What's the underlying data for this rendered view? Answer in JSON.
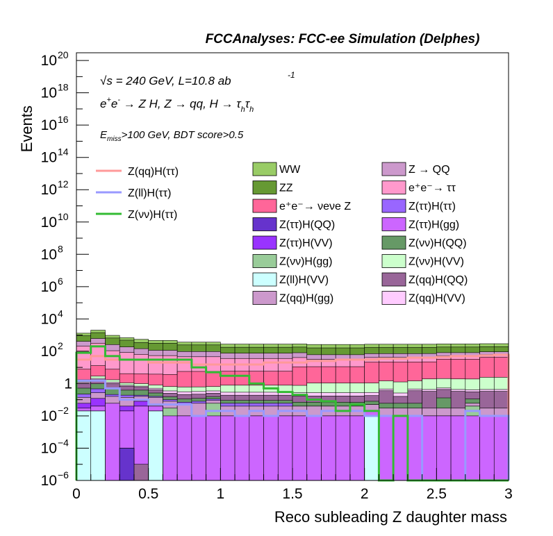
{
  "header": {
    "title": "FCCAnalyses: FCC-ee Simulation (Delphes)"
  },
  "annotations": {
    "energy_line": {
      "sqrt": "√s",
      "text": " = 240 GeV, L=10.8 ab",
      "sup": "-1"
    },
    "process_line": "e⁺e⁻ → Z H, Z → qq, H → τ_h τ_h",
    "process_parts": {
      "ee": "e",
      "plus": "+",
      "minus": "-",
      "arrow1": "→ Z H, Z ",
      "arrow2": "→ qq, H ",
      "arrow3": "→ τ",
      "h1": "h",
      "tau2": "τ",
      "h2": "h"
    },
    "cut_line": {
      "E": "E",
      "sub": "miss",
      "rest": ">100 GeV, BDT score>0.5"
    }
  },
  "chart_data": {
    "type": "bar",
    "stacked": true,
    "log_y": true,
    "xlabel": "Reco subleading Z daughter mass",
    "ylabel": "Events",
    "xlim": [
      0,
      3
    ],
    "ylim": [
      1e-06,
      3e+20
    ],
    "x_ticks": [
      {
        "v": 0,
        "label": "0"
      },
      {
        "v": 0.5,
        "label": "0.5"
      },
      {
        "v": 1,
        "label": "1"
      },
      {
        "v": 1.5,
        "label": "1.5"
      },
      {
        "v": 2,
        "label": "2"
      },
      {
        "v": 2.5,
        "label": "2.5"
      },
      {
        "v": 3,
        "label": "3"
      }
    ],
    "y_ticks": [
      {
        "exp": -6,
        "base": "10",
        "sup": "−6"
      },
      {
        "exp": -4,
        "base": "10",
        "sup": "−4"
      },
      {
        "exp": -2,
        "base": "10",
        "sup": "−2"
      },
      {
        "exp": 0,
        "base": "1",
        "sup": ""
      },
      {
        "exp": 2,
        "base": "10",
        "sup": "2"
      },
      {
        "exp": 4,
        "base": "10",
        "sup": "4"
      },
      {
        "exp": 6,
        "base": "10",
        "sup": "6"
      },
      {
        "exp": 8,
        "base": "10",
        "sup": "8"
      },
      {
        "exp": 10,
        "base": "10",
        "sup": "10"
      },
      {
        "exp": 12,
        "base": "10",
        "sup": "12"
      },
      {
        "exp": 14,
        "base": "10",
        "sup": "14"
      },
      {
        "exp": 16,
        "base": "10",
        "sup": "16"
      },
      {
        "exp": 18,
        "base": "10",
        "sup": "18"
      },
      {
        "exp": 20,
        "base": "10",
        "sup": "20"
      }
    ],
    "bins": [
      0.0,
      0.1,
      0.2,
      0.3,
      0.4,
      0.5,
      0.6,
      0.7,
      0.8,
      0.9,
      1.0,
      1.1,
      1.2,
      1.3,
      1.4,
      1.5,
      1.6,
      1.7,
      1.8,
      1.9,
      2.0,
      2.1,
      2.2,
      2.3,
      2.4,
      2.5,
      2.6,
      2.7,
      2.8,
      2.9,
      3.0
    ],
    "stack_series": [
      {
        "name": "Z(ll)H(VV)",
        "color": "#ccffff",
        "values": [
          0.02,
          0.02,
          0.0,
          0.0,
          0.0,
          0.02,
          0.0,
          0.0,
          0.0,
          0.0,
          0.0,
          0.0,
          0.0,
          0.0,
          0.0,
          0.0,
          0.0,
          0.0,
          0.0,
          0.0,
          0.01,
          0.0,
          0.0,
          0.0,
          0.0,
          0.0,
          0.0,
          0.0,
          0.0,
          0.0
        ]
      },
      {
        "name": "Z(ττ)H(QQ)",
        "color": "#6633cc",
        "values": [
          0.0,
          0.0,
          0.0,
          0.0001,
          0.0,
          0.0,
          0.0,
          0.0,
          0.0,
          0.0,
          0.0,
          0.0,
          0.0,
          0.0,
          0.0,
          0.0,
          0.0,
          0.0,
          0.0,
          0.0,
          0.0,
          0.0,
          0.0,
          0.0,
          0.0,
          0.0,
          0.0,
          0.0,
          0.0,
          0.0
        ]
      },
      {
        "name": "Z(qq)H(QQ)",
        "color": "#996699",
        "values": [
          0.0,
          0.0,
          0.0,
          0.0,
          1e-05,
          0.0,
          0.0,
          0.0,
          0.0,
          0.0,
          0.0,
          0.0,
          0.0,
          0.0,
          0.0,
          0.0,
          0.0,
          0.0,
          0.0,
          0.0,
          0.0,
          0.0,
          0.0,
          0.0,
          0.0,
          0.0,
          0.0,
          0.0,
          0.0,
          0.0
        ]
      },
      {
        "name": "Z(ττ)H(gg)",
        "color": "#cc66ff",
        "values": [
          0.01,
          0.02,
          0.06,
          0.02,
          0.04,
          0.02,
          0.01,
          0.01,
          0.01,
          0.01,
          0.01,
          0.01,
          0.01,
          0.01,
          0.01,
          0.01,
          0.01,
          0.01,
          0.01,
          0.01,
          0.01,
          0.01,
          0.01,
          0.01,
          0.01,
          0.01,
          0.01,
          0.01,
          0.01,
          0.01
        ]
      },
      {
        "name": "Z(νν)H(gg)",
        "color": "#99cc99",
        "values": [
          0.0,
          0.0,
          0.0,
          0.0,
          0.0,
          0.0,
          0.02,
          0.0,
          0.0,
          0.05,
          0.0,
          0.0,
          0.0,
          0.0,
          0.0,
          0.0,
          0.0,
          0.0,
          0.0,
          0.0,
          0.0,
          0.0,
          0.0,
          0.0,
          0.0,
          0.0,
          0.0,
          0.03,
          0.0,
          0.0
        ]
      },
      {
        "name": "Z(ττ)H(VV)",
        "color": "#9933ff",
        "values": [
          0.03,
          0.08,
          0.0,
          0.02,
          0.04,
          0.0,
          0.0,
          0.0,
          0.0,
          0.0,
          0.0,
          0.0,
          0.0,
          0.0,
          0.0,
          0.0,
          0.0,
          0.0,
          0.0,
          0.0,
          0.0,
          0.0,
          0.0,
          0.0,
          0.0,
          0.0,
          0.0,
          0.0,
          0.0,
          0.0
        ]
      },
      {
        "name": "Z(qq)H(gg)",
        "color": "#cc99cc",
        "values": [
          0.08,
          0.15,
          0.1,
          0.1,
          0.08,
          0.1,
          0.05,
          0.04,
          0.05,
          0.03,
          0.03,
          0.03,
          0.03,
          0.03,
          0.03,
          0.03,
          0.03,
          0.03,
          0.03,
          0.03,
          0.03,
          0.02,
          0.02,
          0.02,
          0.02,
          0.02,
          0.02,
          0.02,
          0.02,
          0.02
        ]
      },
      {
        "name": "Z(ττ)H(ττ)",
        "color": "#9966ff",
        "values": [
          0.08,
          0.2,
          0.05,
          0.05,
          0.03,
          0.02,
          0.02,
          0.02,
          0.02,
          0.02,
          0.02,
          0.02,
          0.02,
          0.02,
          0.02,
          0.0,
          0.0,
          0.0,
          0.0,
          0.0,
          0.0,
          0.0,
          0.0,
          0.0,
          0.0,
          0.0,
          0.0,
          0.0,
          0.0,
          0.0
        ]
      },
      {
        "name": "Z(νν)H(QQ)",
        "color": "#669966",
        "values": [
          0.3,
          0.5,
          0.3,
          0.2,
          0.2,
          0.1,
          0.05,
          0.04,
          0.04,
          0.04,
          0.03,
          0.03,
          0.03,
          0.03,
          0.03,
          0.03,
          0.03,
          0.03,
          0.03,
          0.03,
          0.03,
          0.03,
          0.03,
          0.03,
          0.0,
          0.1,
          0.0,
          0.05,
          0.0,
          0.0
        ]
      },
      {
        "name": "Z(qq)H(QQ) ",
        "color": "#996699",
        "values": [
          0.5,
          0.8,
          0.5,
          0.3,
          0.2,
          0.15,
          0.1,
          0.1,
          0.1,
          0.1,
          0.1,
          0.1,
          0.1,
          0.1,
          0.1,
          0.1,
          0.1,
          0.1,
          0.1,
          0.1,
          0.1,
          0.3,
          0.1,
          0.3,
          0.3,
          0.3,
          0.3,
          0.2,
          0.3,
          0.3
        ]
      },
      {
        "name": "Z(qq)H(VV)",
        "color": "#ffccff",
        "values": [
          0.2,
          0.3,
          0.2,
          0.1,
          0.1,
          0.1,
          0.1,
          0.1,
          0.1,
          0.1,
          0.1,
          0.1,
          0.1,
          0.1,
          0.1,
          0.1,
          0.1,
          0.1,
          0.1,
          0.1,
          0.1,
          0.1,
          0.1,
          0.1,
          0.1,
          0.1,
          0.1,
          0.1,
          0.1,
          0.1
        ]
      },
      {
        "name": "Z(νν)H(VV)",
        "color": "#ccffcc",
        "values": [
          0.5,
          0.8,
          0.5,
          0.3,
          0.3,
          0.3,
          0.3,
          0.3,
          0.3,
          0.3,
          0.5,
          0.5,
          0.5,
          0.5,
          0.5,
          0.5,
          0.8,
          0.8,
          0.8,
          0.8,
          0.8,
          1.0,
          1.0,
          1.0,
          1.5,
          1.5,
          1.5,
          1.5,
          2.0,
          2.0
        ]
      },
      {
        "name": "e⁺e⁻→ νeνe Z",
        "color": "#ff6699",
        "values": [
          6.0,
          10.0,
          6.0,
          3.0,
          3.0,
          3.0,
          3.0,
          5.0,
          5.0,
          5.0,
          5.0,
          5.0,
          5.0,
          5.0,
          5.0,
          10.0,
          10.0,
          10.0,
          10.0,
          10.0,
          20.0,
          20.0,
          20.0,
          20.0,
          20.0,
          30.0,
          30.0,
          30.0,
          40.0,
          40.0
        ]
      },
      {
        "name": "e⁺e⁻→ ττ",
        "color": "#ff99cc",
        "values": [
          200.0,
          300.0,
          100.0,
          80.0,
          60.0,
          50.0,
          50.0,
          40.0,
          40.0,
          40.0,
          30.0,
          30.0,
          30.0,
          30.0,
          30.0,
          30.0,
          20.0,
          20.0,
          20.0,
          20.0,
          20.0,
          20.0,
          20.0,
          20.0,
          20.0,
          20.0,
          20.0,
          20.0,
          20.0,
          20.0
        ]
      },
      {
        "name": "Z → QQ",
        "color": "#cc99cc",
        "values": [
          200.0,
          300.0,
          150.0,
          100.0,
          80.0,
          60.0,
          60.0,
          50.0,
          50.0,
          50.0,
          40.0,
          40.0,
          40.0,
          40.0,
          40.0,
          40.0,
          30.0,
          30.0,
          30.0,
          30.0,
          30.0,
          30.0,
          30.0,
          30.0,
          30.0,
          30.0,
          30.0,
          30.0,
          30.0,
          30.0
        ]
      },
      {
        "name": "ZZ",
        "color": "#669933",
        "values": [
          500.0,
          800.0,
          400.0,
          300.0,
          200.0,
          200.0,
          200.0,
          150.0,
          150.0,
          150.0,
          100.0,
          100.0,
          100.0,
          100.0,
          100.0,
          100.0,
          100.0,
          100.0,
          100.0,
          100.0,
          100.0,
          100.0,
          100.0,
          100.0,
          100.0,
          100.0,
          100.0,
          100.0,
          100.0,
          100.0
        ]
      },
      {
        "name": "WW",
        "color": "#99cc66",
        "values": [
          400.0,
          600.0,
          300.0,
          200.0,
          200.0,
          150.0,
          150.0,
          120.0,
          120.0,
          120.0,
          100.0,
          100.0,
          100.0,
          100.0,
          100.0,
          100.0,
          100.0,
          100.0,
          100.0,
          100.0,
          100.0,
          100.0,
          100.0,
          100.0,
          100.0,
          100.0,
          100.0,
          100.0,
          100.0,
          100.0
        ]
      }
    ],
    "line_series": [
      {
        "name": "Z(qq)H(ττ)",
        "color": "#ff9999",
        "values": [
          30.0,
          50.0,
          30.0,
          30.0,
          30.0,
          20.0,
          20.0,
          20.0,
          15.0,
          15.0,
          15.0,
          15.0,
          15.0,
          20.0,
          20.0,
          20.0,
          25.0,
          25.0,
          30.0,
          30.0,
          30.0,
          35.0,
          35.0,
          40.0,
          40.0,
          45.0,
          50.0,
          50.0,
          55.0,
          60.0
        ]
      },
      {
        "name": "Z(ll)H(ττ)",
        "color": "#9999ff",
        "values": [
          1.5,
          1.5,
          0.5,
          0.1,
          0.1,
          0.05,
          0.05,
          0.05,
          0.01,
          0.02,
          0.02,
          0.01,
          0.02,
          0.01,
          0.02,
          0.02,
          0.01,
          0.02,
          0.02,
          0.02,
          0.01,
          0.01,
          0.01,
          0.01,
          1e-06,
          1e-06,
          1e-06,
          0.02,
          0.01,
          0.01
        ]
      },
      {
        "name": "Z(νν)H(ττ)",
        "color": "#33bb33",
        "values": [
          80.0,
          200.0,
          50.0,
          30.0,
          30.0,
          30.0,
          30.0,
          30.0,
          10.0,
          5.0,
          3.0,
          3.0,
          1.0,
          0.5,
          0.3,
          0.2,
          0.1,
          0.08,
          0.02,
          0.05,
          0.02,
          1e-06,
          0.01,
          1e-06,
          1e-06,
          1e-06,
          1e-06,
          1e-06,
          1e-06,
          1e-06
        ]
      }
    ],
    "legend_left": [
      {
        "label": "Z(qq)H(ττ)",
        "color": "#ff9999"
      },
      {
        "label": "Z(ll)H(ττ)",
        "color": "#9999ff"
      },
      {
        "label": "Z(νν)H(ττ)",
        "color": "#33bb33"
      }
    ],
    "legend_boxes": [
      {
        "label": "WW",
        "color": "#99cc66"
      },
      {
        "label": "Z → QQ",
        "color": "#cc99cc"
      },
      {
        "label": "ZZ",
        "color": "#669933"
      },
      {
        "label": "e⁺e⁻→ ττ",
        "color": "#ff99cc"
      },
      {
        "label": "e⁺e⁻→ νeνe Z",
        "color": "#ff6699"
      },
      {
        "label": "Z(ττ)H(ττ)",
        "color": "#9966ff"
      },
      {
        "label": "Z(ττ)H(QQ)",
        "color": "#6633cc"
      },
      {
        "label": "Z(ττ)H(gg)",
        "color": "#cc66ff"
      },
      {
        "label": "Z(ττ)H(VV)",
        "color": "#9933ff"
      },
      {
        "label": "Z(νν)H(QQ)",
        "color": "#669966"
      },
      {
        "label": "Z(νν)H(gg)",
        "color": "#99cc99"
      },
      {
        "label": "Z(νν)H(VV)",
        "color": "#ccffcc"
      },
      {
        "label": "Z(ll)H(VV)",
        "color": "#ccffff"
      },
      {
        "label": "Z(qq)H(QQ)",
        "color": "#996699"
      },
      {
        "label": "Z(qq)H(gg)",
        "color": "#cc99cc"
      },
      {
        "label": "Z(qq)H(VV)",
        "color": "#ffccff"
      }
    ],
    "grid": false,
    "legend_placement": "upper area, three columns"
  }
}
